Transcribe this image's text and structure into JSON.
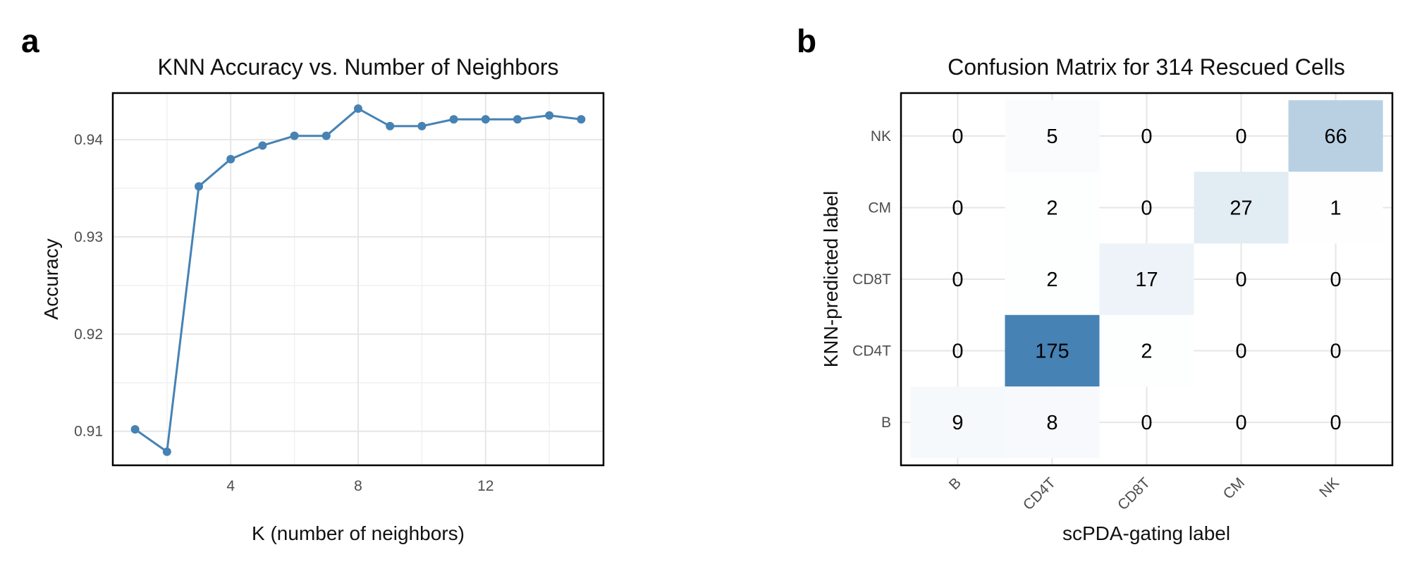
{
  "panels": {
    "a": {
      "letter": "a"
    },
    "b": {
      "letter": "b"
    }
  },
  "chart_data": [
    {
      "type": "line",
      "title": "KNN Accuracy vs. Number of Neighbors",
      "xlabel": "K (number of neighbors)",
      "ylabel": "Accuracy",
      "xlim": [
        0.3,
        15.7
      ],
      "ylim": [
        0.9065,
        0.9448
      ],
      "xticks": [
        4,
        8,
        12
      ],
      "xtick_labels": [
        "4",
        "8",
        "12"
      ],
      "yticks": [
        0.91,
        0.92,
        0.93,
        0.94
      ],
      "ytick_labels": [
        "0.91",
        "0.92",
        "0.93",
        "0.94"
      ],
      "grid": true,
      "color": "#4682b4",
      "x": [
        1,
        2,
        3,
        4,
        5,
        6,
        7,
        8,
        9,
        10,
        11,
        12,
        13,
        14,
        15
      ],
      "y": [
        0.9102,
        0.9079,
        0.9352,
        0.938,
        0.9394,
        0.9404,
        0.9404,
        0.9432,
        0.9414,
        0.9414,
        0.9421,
        0.9421,
        0.9421,
        0.9425,
        0.9421
      ]
    },
    {
      "type": "heatmap",
      "title": "Confusion Matrix for 314 Rescued Cells",
      "xlabel": "scPDA-gating label",
      "ylabel": "KNN-predicted label",
      "x_categories": [
        "B",
        "CD4T",
        "CD8T",
        "CM",
        "NK"
      ],
      "y_categories": [
        "NK",
        "CM",
        "CD8T",
        "CD4T",
        "B"
      ],
      "values": [
        [
          0,
          5,
          0,
          0,
          66
        ],
        [
          0,
          2,
          0,
          27,
          1
        ],
        [
          0,
          2,
          17,
          0,
          0
        ],
        [
          0,
          175,
          2,
          0,
          0
        ],
        [
          9,
          8,
          0,
          0,
          0
        ]
      ],
      "color_low": "#ffffff",
      "color_high": "#4682b4",
      "grid": true
    }
  ]
}
